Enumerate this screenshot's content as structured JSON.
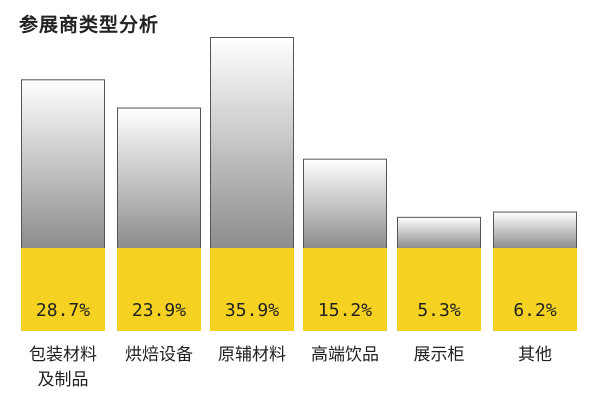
{
  "chart_data": {
    "type": "bar",
    "title": "参展商类型分析",
    "categories": [
      [
        "包装材料",
        "及制品"
      ],
      [
        "烘焙设备"
      ],
      [
        "原辅材料"
      ],
      [
        "高端饮品"
      ],
      [
        "展示柜"
      ],
      [
        "其他"
      ]
    ],
    "values": [
      28.7,
      23.9,
      35.9,
      15.2,
      5.3,
      6.2
    ],
    "value_labels": [
      "28.7%",
      "23.9%",
      "35.9%",
      "15.2%",
      "5.3%",
      "6.2%"
    ],
    "ylim": [
      0,
      35.9
    ],
    "grid": false,
    "legend": "none",
    "colors": {
      "label_band": "#f5d122",
      "bar_top": "#ffffff",
      "bar_bottom": "#8c8c8c",
      "bar_border": "#555555",
      "text": "#222222"
    }
  }
}
